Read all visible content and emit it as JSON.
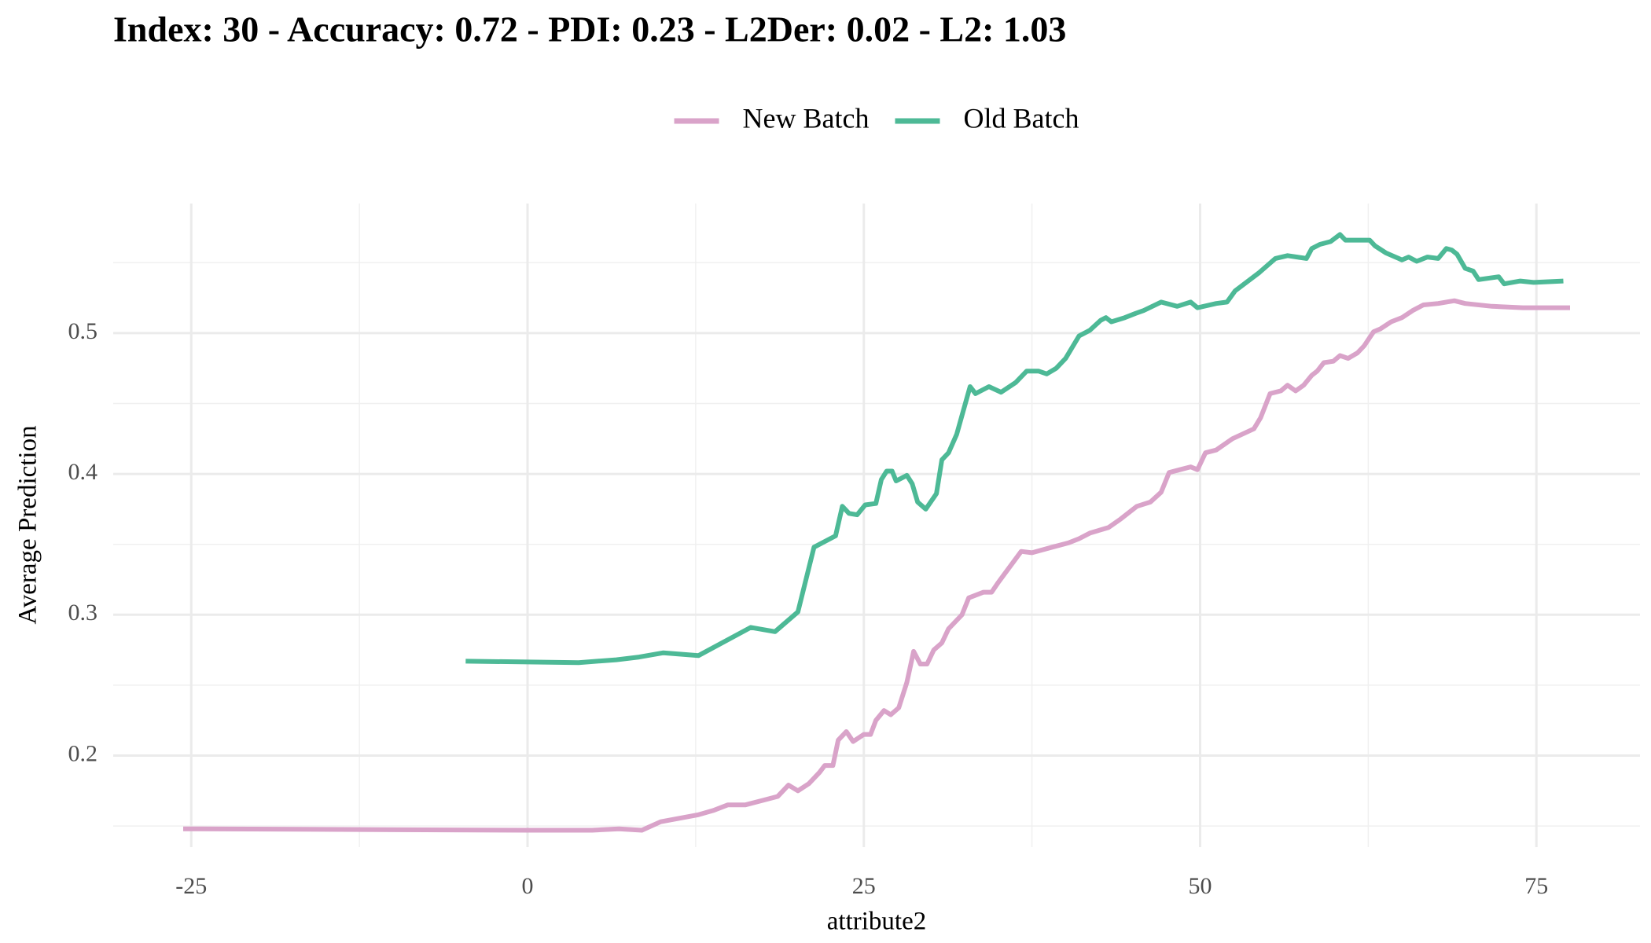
{
  "chart_data": {
    "type": "line",
    "title": "Index: 30 - Accuracy: 0.72 - PDI: 0.23 - L2Der: 0.02 - L2: 1.03",
    "x_label": "attribute2",
    "y_label": "Average Prediction",
    "xlim": [
      -30.8,
      82.7
    ],
    "ylim": [
      0.135,
      0.592
    ],
    "xticks": [
      -25,
      0,
      25,
      50,
      75
    ],
    "yticks": [
      0.2,
      0.3,
      0.4,
      0.5
    ],
    "x_minor_ticks": [
      -12.5,
      12.5,
      37.5,
      62.5
    ],
    "y_minor_ticks": [
      0.15,
      0.25,
      0.35,
      0.45,
      0.55
    ],
    "grid": true,
    "legend_position": "top",
    "series": [
      {
        "name": "New Batch",
        "color": "#d9a3c9",
        "x": [
          -25.6,
          0,
          4.8,
          6.8,
          8.5,
          9.9,
          12.7,
          13.8,
          14.9,
          16.2,
          17.4,
          18.6,
          19.4,
          20.1,
          20.9,
          21.7,
          22.1,
          22.7,
          23.1,
          23.7,
          24.2,
          25.0,
          25.5,
          25.9,
          26.5,
          27.0,
          27.6,
          28.2,
          28.7,
          29.2,
          29.7,
          30.2,
          30.8,
          31.3,
          32.3,
          32.8,
          33.9,
          34.5,
          35.0,
          36.7,
          37.5,
          39.0,
          40.2,
          41.0,
          41.8,
          43.2,
          44.1,
          45.3,
          46.3,
          47.1,
          47.7,
          48.5,
          49.3,
          49.8,
          50.4,
          51.2,
          52.4,
          54.0,
          54.5,
          55.2,
          56.0,
          56.5,
          57.1,
          57.7,
          58.3,
          58.7,
          59.2,
          59.9,
          60.4,
          61.0,
          61.7,
          62.2,
          62.9,
          63.4,
          64.2,
          65.0,
          65.8,
          66.6,
          67.7,
          68.9,
          69.7,
          71.7,
          74.0,
          77.5
        ],
        "values": [
          0.148,
          0.147,
          0.147,
          0.148,
          0.147,
          0.153,
          0.158,
          0.161,
          0.165,
          0.165,
          0.168,
          0.171,
          0.179,
          0.175,
          0.18,
          0.188,
          0.193,
          0.193,
          0.211,
          0.217,
          0.21,
          0.215,
          0.215,
          0.225,
          0.232,
          0.229,
          0.234,
          0.252,
          0.274,
          0.265,
          0.265,
          0.275,
          0.28,
          0.29,
          0.3,
          0.312,
          0.316,
          0.316,
          0.323,
          0.345,
          0.344,
          0.348,
          0.351,
          0.354,
          0.358,
          0.362,
          0.368,
          0.377,
          0.38,
          0.387,
          0.401,
          0.403,
          0.405,
          0.403,
          0.415,
          0.417,
          0.425,
          0.432,
          0.44,
          0.457,
          0.459,
          0.463,
          0.459,
          0.463,
          0.47,
          0.473,
          0.479,
          0.48,
          0.484,
          0.482,
          0.486,
          0.491,
          0.501,
          0.503,
          0.508,
          0.511,
          0.516,
          0.52,
          0.521,
          0.523,
          0.521,
          0.519,
          0.518,
          0.518
        ]
      },
      {
        "name": "Old Batch",
        "color": "#4db996",
        "x": [
          -4.6,
          3.8,
          6.6,
          8.3,
          10.1,
          12.7,
          16.6,
          18.4,
          20.1,
          21.3,
          22.9,
          23.4,
          23.9,
          24.5,
          25.1,
          25.9,
          26.3,
          26.7,
          27.1,
          27.4,
          28.2,
          28.6,
          29.0,
          29.6,
          30.4,
          30.8,
          31.3,
          31.9,
          32.9,
          33.3,
          34.3,
          35.2,
          36.3,
          37.1,
          38.0,
          38.6,
          39.3,
          40.0,
          41.0,
          41.8,
          42.6,
          43.0,
          43.4,
          44.4,
          45.2,
          45.8,
          47.1,
          48.3,
          49.3,
          49.8,
          51.2,
          52.0,
          52.6,
          54.4,
          55.6,
          56.5,
          57.9,
          58.3,
          58.9,
          59.7,
          60.4,
          60.8,
          61.8,
          62.6,
          63.0,
          63.8,
          65.0,
          65.5,
          66.1,
          66.9,
          67.7,
          68.3,
          68.7,
          69.1,
          69.7,
          70.3,
          70.7,
          72.2,
          72.6,
          73.8,
          74.8,
          77.0
        ],
        "values": [
          0.267,
          0.266,
          0.268,
          0.27,
          0.273,
          0.271,
          0.291,
          0.288,
          0.302,
          0.348,
          0.356,
          0.377,
          0.372,
          0.371,
          0.378,
          0.379,
          0.396,
          0.402,
          0.402,
          0.395,
          0.399,
          0.393,
          0.38,
          0.375,
          0.386,
          0.41,
          0.415,
          0.428,
          0.462,
          0.457,
          0.462,
          0.458,
          0.465,
          0.473,
          0.473,
          0.471,
          0.475,
          0.482,
          0.498,
          0.502,
          0.509,
          0.511,
          0.508,
          0.511,
          0.514,
          0.516,
          0.522,
          0.519,
          0.522,
          0.518,
          0.521,
          0.522,
          0.53,
          0.543,
          0.553,
          0.555,
          0.553,
          0.56,
          0.563,
          0.565,
          0.57,
          0.566,
          0.566,
          0.566,
          0.562,
          0.557,
          0.552,
          0.554,
          0.551,
          0.554,
          0.553,
          0.56,
          0.559,
          0.556,
          0.546,
          0.544,
          0.538,
          0.54,
          0.535,
          0.537,
          0.536,
          0.537
        ]
      }
    ]
  }
}
